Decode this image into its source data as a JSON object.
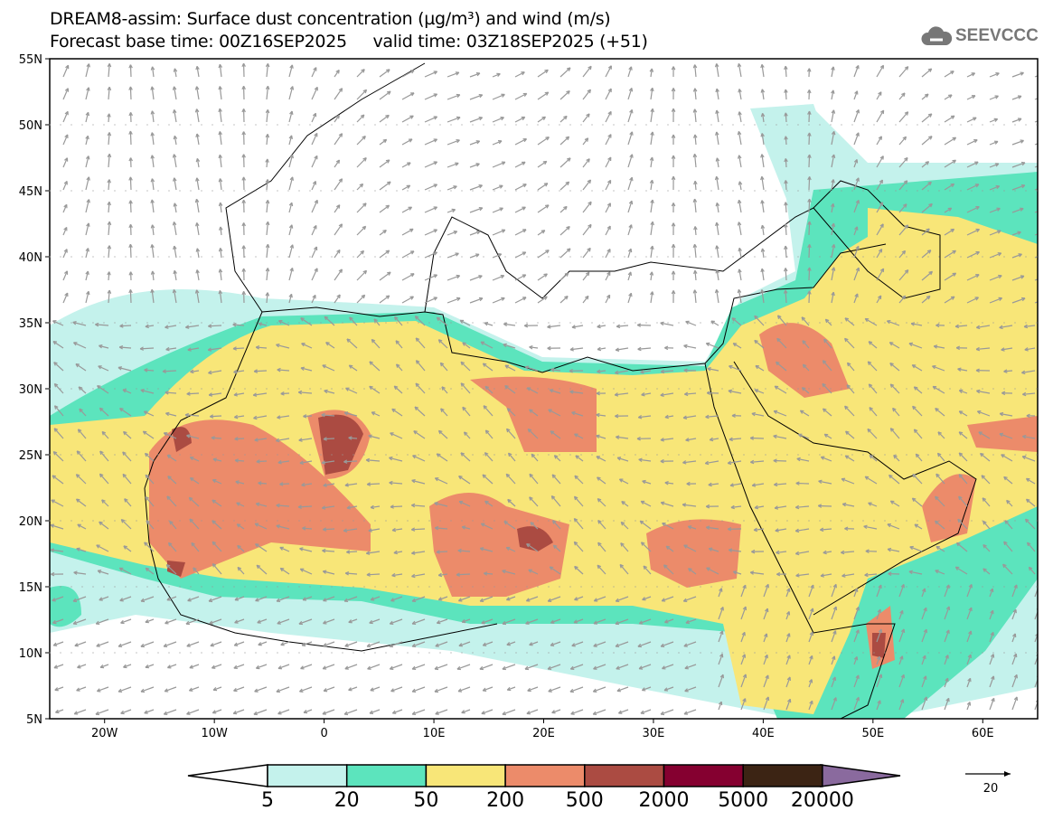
{
  "title_line1": "DREAM8-assim: Surface dust concentration (µg/m³) and wind (m/s)",
  "title_line2": "Forecast base time: 00Z16SEP2025     valid time: 03Z18SEP2025 (+51)",
  "logo_text": "SEEVCCC",
  "map": {
    "lon_range": [
      -25,
      65
    ],
    "lat_range": [
      5,
      55
    ],
    "lat_labels": [
      "55N",
      "50N",
      "45N",
      "40N",
      "35N",
      "30N",
      "25N",
      "20N",
      "15N",
      "10N",
      "5N"
    ],
    "lon_labels": [
      "20W",
      "10W",
      "0",
      "10E",
      "20E",
      "30E",
      "40E",
      "50E",
      "60E"
    ]
  },
  "colorbar": {
    "labels": [
      "5",
      "20",
      "50",
      "200",
      "500",
      "2000",
      "5000",
      "20000"
    ],
    "colors": [
      "#c4f2ec",
      "#5ce4bd",
      "#f8e678",
      "#ec8b6a",
      "#ab4b42",
      "#850030",
      "#3c2414",
      "#8a6a9e"
    ]
  },
  "wind_reference": {
    "value": "20"
  }
}
